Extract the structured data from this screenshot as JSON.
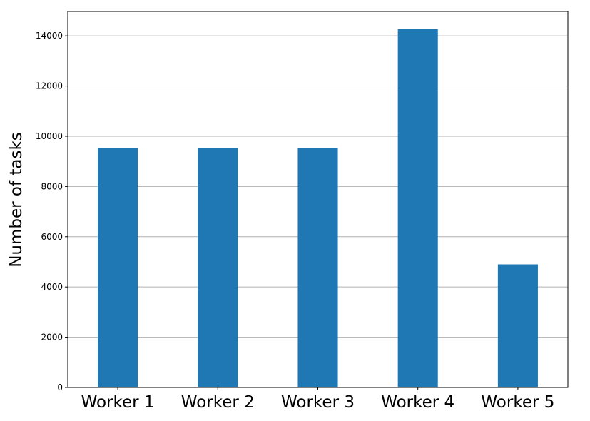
{
  "chart_data": {
    "type": "bar",
    "title": "",
    "xlabel": "",
    "ylabel": "Number of tasks",
    "categories": [
      "Worker 1",
      "Worker 2",
      "Worker 3",
      "Worker 4",
      "Worker 5"
    ],
    "values": [
      9520,
      9520,
      9520,
      14260,
      4900
    ],
    "ylim": [
      0,
      14970
    ],
    "yticks": [
      0,
      2000,
      4000,
      6000,
      8000,
      10000,
      12000,
      14000
    ],
    "ytick_labels": [
      "0",
      "2000",
      "4000",
      "6000",
      "8000",
      "10000",
      "12000",
      "14000"
    ],
    "grid": {
      "y": true,
      "x": false
    },
    "legend": "none",
    "colors": {
      "bar": "#1f77b4",
      "grid": "#b0b0b0",
      "axis": "#000000"
    }
  }
}
